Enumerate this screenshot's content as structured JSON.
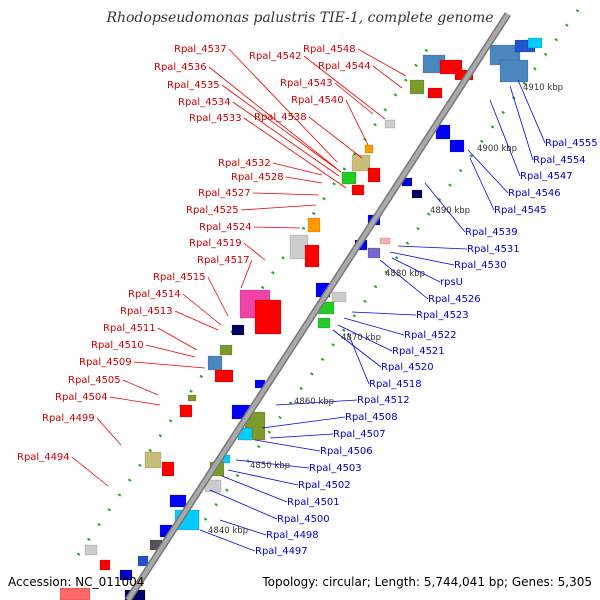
{
  "title": "Rhodopseudomonas palustris TIE-1, complete genome",
  "footer": {
    "accession": "Accession: NC_011004",
    "topology": "Topology: circular; Length: 5,744,041 bp; Genes: 5,305"
  },
  "colors": {
    "backbone": "#aaaaaa",
    "plus_strand_label": "#cc0000",
    "minus_strand_label": "#0000cc",
    "plus_arrow": "#ff0000",
    "minus_arrow": "#0000ff",
    "tick_dots": "#22aa22"
  },
  "kbp_ticks": [
    "4840 kbp",
    "4850 kbp",
    "4860 kbp",
    "4870 kbp",
    "4880 kbp",
    "4890 kbp",
    "4900 kbp",
    "4910 kbp"
  ],
  "plus_labels": [
    "Rpal_4548",
    "Rpal_4544",
    "Rpal_4543",
    "Rpal_4542",
    "Rpal_4537",
    "Rpal_4536",
    "Rpal_4540",
    "Rpal_4535",
    "Rpal_4534",
    "Rpal_4538",
    "Rpal_4533",
    "Rpal_4532",
    "Rpal_4528",
    "Rpal_4527",
    "Rpal_4525",
    "Rpal_4524",
    "Rpal_4519",
    "Rpal_4517",
    "Rpal_4515",
    "Rpal_4514",
    "Rpal_4513",
    "Rpal_4511",
    "Rpal_4510",
    "Rpal_4509",
    "Rpal_4505",
    "Rpal_4504",
    "Rpal_4499",
    "Rpal_4494"
  ],
  "minus_labels": [
    "Rpal_4555",
    "Rpal_4554",
    "Rpal_4547",
    "Rpal_4546",
    "Rpal_4545",
    "Rpal_4539",
    "Rpal_4531",
    "Rpal_4530",
    "rpsU",
    "Rpal_4526",
    "Rpal_4523",
    "Rpal_4522",
    "Rpal_4521",
    "Rpal_4520",
    "Rpal_4518",
    "Rpal_4512",
    "Rpal_4508",
    "Rpal_4507",
    "Rpal_4506",
    "Rpal_4503",
    "Rpal_4502",
    "Rpal_4501",
    "Rpal_4500",
    "Rpal_4498",
    "Rpal_4497"
  ]
}
